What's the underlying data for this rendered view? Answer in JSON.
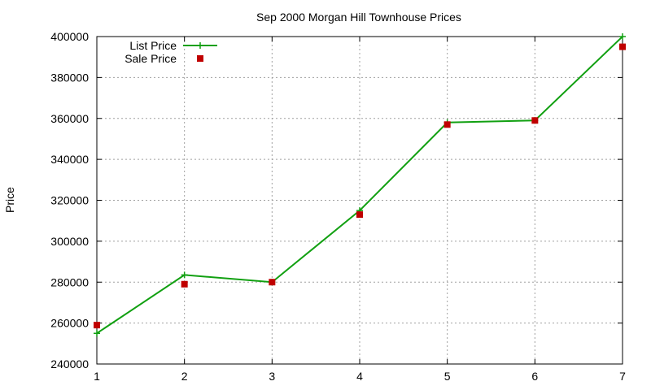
{
  "chart_data": {
    "type": "line",
    "title": "Sep 2000 Morgan Hill Townhouse Prices",
    "xlabel": "",
    "ylabel": "Price",
    "xlim": [
      1,
      7
    ],
    "ylim": [
      240000,
      400000
    ],
    "x_ticks": [
      "1",
      "2",
      "3",
      "4",
      "5",
      "6",
      "7"
    ],
    "y_ticks": [
      "240000",
      "260000",
      "280000",
      "300000",
      "320000",
      "340000",
      "360000",
      "380000",
      "400000"
    ],
    "grid": true,
    "legend_position": "top-left",
    "x": [
      1,
      2,
      3,
      4,
      5,
      6,
      7
    ],
    "series": [
      {
        "name": "List Price",
        "style": "line-points",
        "marker": "plus",
        "color": "#11a011",
        "values": [
          255000,
          283500,
          280000,
          315000,
          358000,
          359000,
          400000
        ]
      },
      {
        "name": "Sale Price",
        "style": "points",
        "marker": "square",
        "color": "#c00000",
        "values": [
          259000,
          279000,
          280000,
          313000,
          357000,
          359000,
          395000
        ]
      }
    ]
  }
}
